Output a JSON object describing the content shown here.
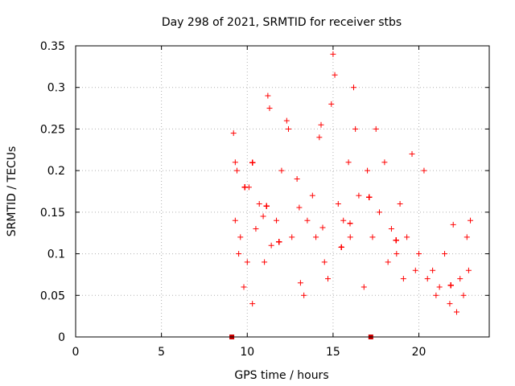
{
  "chart_data": {
    "type": "scatter",
    "title": "Day 298 of 2021, SRMTID for receiver stbs",
    "xlabel": "GPS time / hours",
    "ylabel": "SRMTID / TECUs",
    "xlim": [
      0,
      24.1
    ],
    "ylim": [
      0,
      0.35
    ],
    "x_ticks": [
      0,
      5,
      10,
      15,
      20
    ],
    "y_ticks": [
      0,
      0.05,
      0.1,
      0.15,
      0.2,
      0.25,
      0.3,
      0.35
    ],
    "x_tick_labels": [
      "0",
      "5",
      "10",
      "15",
      "20"
    ],
    "y_tick_labels": [
      "0",
      "0.05",
      "0.1",
      "0.15",
      "0.2",
      "0.25",
      "0.3",
      "0.35"
    ],
    "grid": true,
    "marker": "+",
    "marker_color": "#ff0000",
    "data_gap_markers": [
      {
        "x": 9.1,
        "y": 0
      },
      {
        "x": 17.2,
        "y": 0
      }
    ],
    "series": [
      {
        "name": "SRMTID",
        "x_range": [
          9.1,
          23.0
        ],
        "representative_points": [
          [
            9.2,
            0.245
          ],
          [
            9.3,
            0.21
          ],
          [
            9.4,
            0.2
          ],
          [
            9.3,
            0.14
          ],
          [
            9.5,
            0.1
          ],
          [
            9.6,
            0.12
          ],
          [
            9.8,
            0.06
          ],
          [
            10.0,
            0.09
          ],
          [
            10.1,
            0.18
          ],
          [
            10.3,
            0.04
          ],
          [
            10.5,
            0.13
          ],
          [
            10.7,
            0.16
          ],
          [
            11.0,
            0.09
          ],
          [
            11.2,
            0.29
          ],
          [
            11.3,
            0.275
          ],
          [
            11.4,
            0.11
          ],
          [
            11.7,
            0.14
          ],
          [
            12.0,
            0.2
          ],
          [
            12.3,
            0.26
          ],
          [
            12.4,
            0.25
          ],
          [
            12.6,
            0.12
          ],
          [
            12.9,
            0.19
          ],
          [
            13.1,
            0.065
          ],
          [
            13.3,
            0.05
          ],
          [
            13.5,
            0.14
          ],
          [
            13.8,
            0.17
          ],
          [
            14.0,
            0.12
          ],
          [
            14.2,
            0.24
          ],
          [
            14.3,
            0.255
          ],
          [
            14.5,
            0.09
          ],
          [
            14.7,
            0.07
          ],
          [
            14.9,
            0.28
          ],
          [
            15.0,
            0.34
          ],
          [
            15.1,
            0.315
          ],
          [
            15.3,
            0.16
          ],
          [
            15.6,
            0.14
          ],
          [
            15.9,
            0.21
          ],
          [
            16.0,
            0.12
          ],
          [
            16.2,
            0.3
          ],
          [
            16.3,
            0.25
          ],
          [
            16.5,
            0.17
          ],
          [
            16.8,
            0.06
          ],
          [
            17.0,
            0.2
          ],
          [
            17.3,
            0.12
          ],
          [
            17.5,
            0.25
          ],
          [
            17.7,
            0.15
          ],
          [
            18.0,
            0.21
          ],
          [
            18.2,
            0.09
          ],
          [
            18.4,
            0.13
          ],
          [
            18.7,
            0.1
          ],
          [
            18.9,
            0.16
          ],
          [
            19.1,
            0.07
          ],
          [
            19.3,
            0.12
          ],
          [
            19.6,
            0.22
          ],
          [
            19.8,
            0.08
          ],
          [
            20.0,
            0.1
          ],
          [
            20.3,
            0.2
          ],
          [
            20.5,
            0.07
          ],
          [
            20.8,
            0.08
          ],
          [
            21.0,
            0.05
          ],
          [
            21.2,
            0.06
          ],
          [
            21.5,
            0.1
          ],
          [
            21.8,
            0.04
          ],
          [
            22.0,
            0.135
          ],
          [
            22.2,
            0.03
          ],
          [
            22.4,
            0.07
          ],
          [
            22.6,
            0.05
          ],
          [
            22.8,
            0.12
          ],
          [
            22.9,
            0.08
          ],
          [
            23.0,
            0.14
          ]
        ]
      }
    ]
  }
}
